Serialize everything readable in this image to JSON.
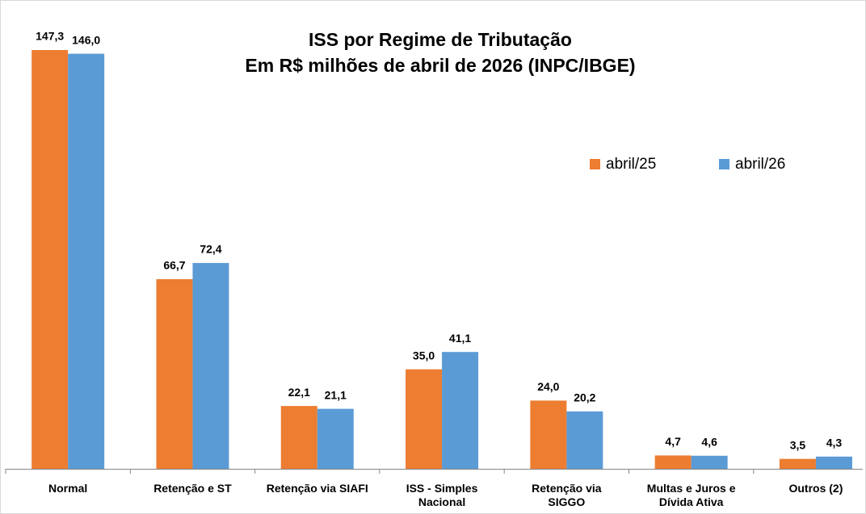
{
  "chart_data": {
    "type": "bar",
    "title": "ISS por Regime de Tributação",
    "subtitle": "Em R$ milhões de abril de 2026 (INPC/IBGE)",
    "categories": [
      "Normal",
      "Retenção e ST",
      "Retenção via SIAFI",
      "ISS - Simples Nacional",
      "Retenção via SIGGO",
      "Multas e Juros e Dívida Ativa",
      "Outros (2)"
    ],
    "series": [
      {
        "name": "abril/25",
        "color": "#ed7d31",
        "values": [
          147.3,
          66.7,
          22.1,
          35.0,
          24.0,
          4.7,
          3.5
        ],
        "value_labels": [
          "147,3",
          "66,7",
          "22,1",
          "35,0",
          "24,0",
          "4,7",
          "3,5"
        ]
      },
      {
        "name": "abril/26",
        "color": "#5b9bd5",
        "values": [
          146.0,
          72.4,
          21.1,
          41.1,
          20.2,
          4.6,
          4.3
        ],
        "value_labels": [
          "146,0",
          "72,4",
          "21,1",
          "41,1",
          "20,2",
          "4,6",
          "4,3"
        ]
      }
    ],
    "legend": "upper right"
  }
}
